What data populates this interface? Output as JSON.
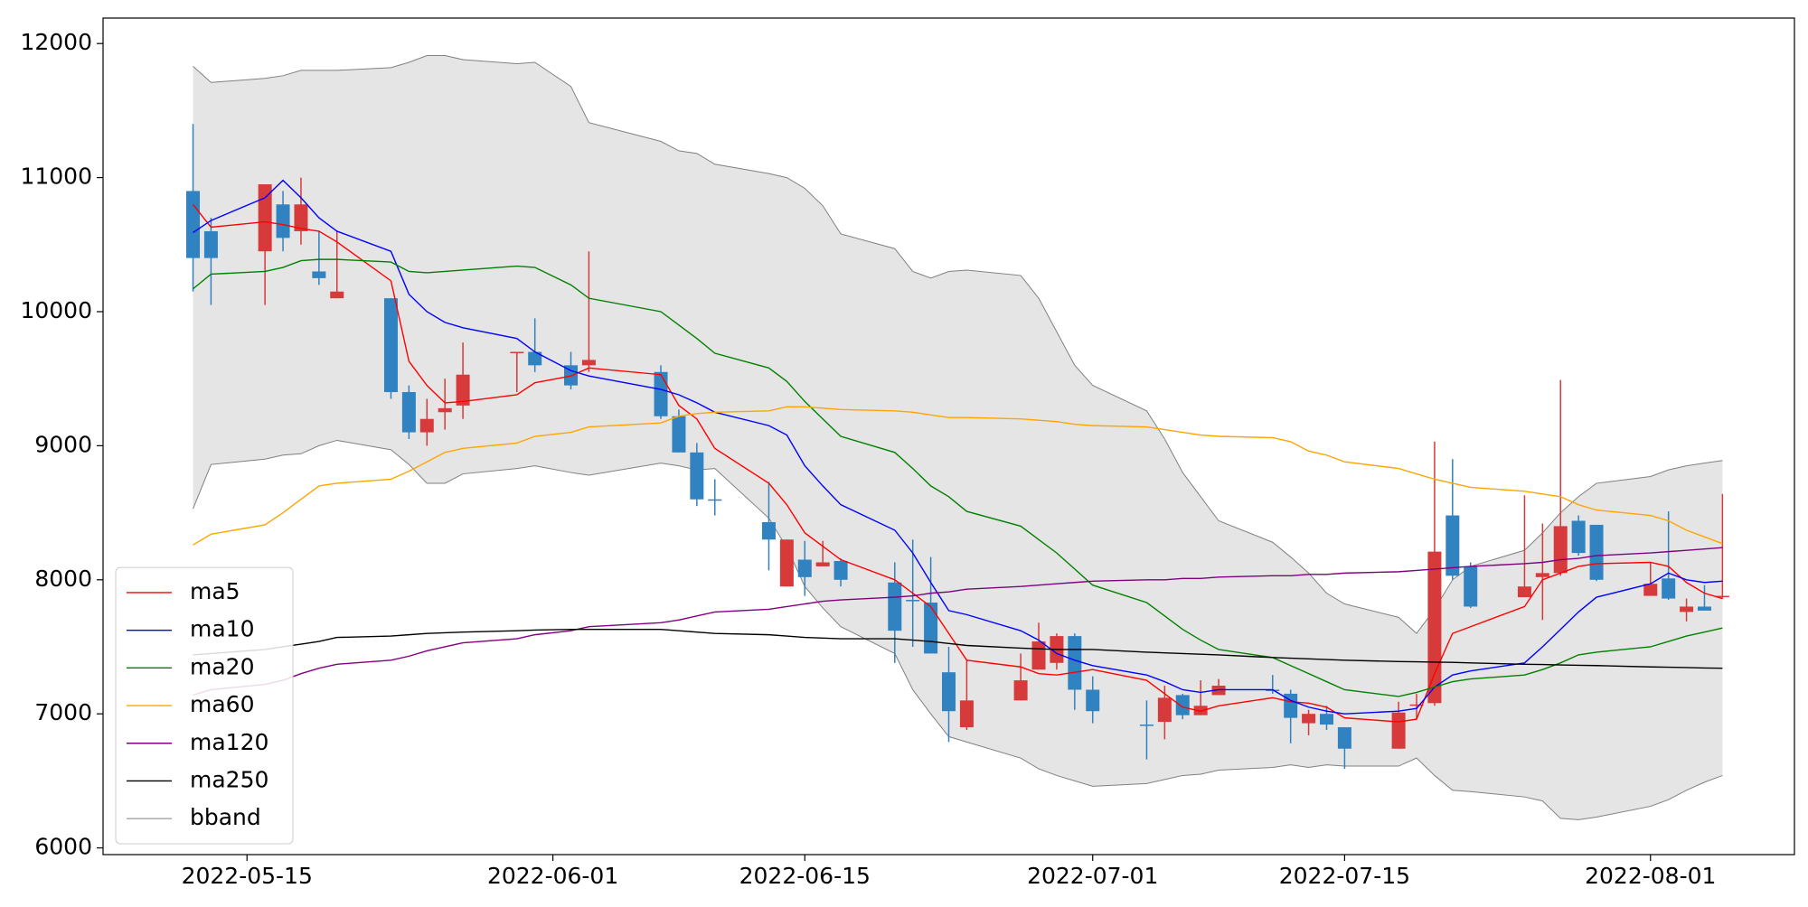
{
  "chart_data": {
    "type": "candlestick",
    "x": [
      "2022-05-12",
      "2022-05-13",
      "2022-05-16",
      "2022-05-17",
      "2022-05-18",
      "2022-05-19",
      "2022-05-20",
      "2022-05-23",
      "2022-05-24",
      "2022-05-25",
      "2022-05-26",
      "2022-05-27",
      "2022-05-30",
      "2022-05-31",
      "2022-06-02",
      "2022-06-03",
      "2022-06-07",
      "2022-06-08",
      "2022-06-09",
      "2022-06-10",
      "2022-06-13",
      "2022-06-14",
      "2022-06-15",
      "2022-06-16",
      "2022-06-17",
      "2022-06-20",
      "2022-06-21",
      "2022-06-22",
      "2022-06-23",
      "2022-06-24",
      "2022-06-27",
      "2022-06-28",
      "2022-06-29",
      "2022-06-30",
      "2022-07-01",
      "2022-07-04",
      "2022-07-05",
      "2022-07-06",
      "2022-07-07",
      "2022-07-08",
      "2022-07-11",
      "2022-07-12",
      "2022-07-13",
      "2022-07-14",
      "2022-07-15",
      "2022-07-18",
      "2022-07-19",
      "2022-07-20",
      "2022-07-21",
      "2022-07-22",
      "2022-07-25",
      "2022-07-26",
      "2022-07-27",
      "2022-07-28",
      "2022-07-29",
      "2022-08-01",
      "2022-08-02",
      "2022-08-03",
      "2022-08-04",
      "2022-08-05"
    ],
    "xlim": [
      "2022-05-07",
      "2022-08-09"
    ],
    "xticks": [
      "2022-05-15",
      "2022-06-01",
      "2022-06-15",
      "2022-07-01",
      "2022-07-15",
      "2022-08-01"
    ],
    "ylim": [
      5950,
      12190
    ],
    "yticks": [
      6000,
      7000,
      8000,
      9000,
      10000,
      11000,
      12000
    ],
    "candles": {
      "up_color": "#d73a3a",
      "down_color": "#3082c1",
      "open": [
        10900,
        10600,
        10450,
        10800,
        10600,
        10300,
        10100,
        10100,
        9400,
        9100,
        9250,
        9300,
        9690,
        9700,
        9600,
        9600,
        9550,
        9220,
        8950,
        8600,
        8430,
        7950,
        8150,
        8100,
        8140,
        7980,
        7850,
        7830,
        7310,
        6900,
        7100,
        7330,
        7380,
        7580,
        7180,
        6920,
        6940,
        7140,
        6990,
        7140,
        7180,
        7150,
        6930,
        7000,
        6900,
        6740,
        7060,
        7080,
        8480,
        8100,
        7870,
        8020,
        8050,
        8440,
        8410,
        7880,
        8010,
        7760,
        7800,
        7870
      ],
      "high": [
        11400,
        10700,
        10950,
        10900,
        11000,
        10600,
        10600,
        10100,
        9450,
        9350,
        9500,
        9770,
        9700,
        9950,
        9700,
        10450,
        9600,
        9270,
        9020,
        8750,
        8730,
        8300,
        8290,
        8290,
        8160,
        8130,
        8300,
        8170,
        7500,
        7400,
        7450,
        7680,
        7600,
        7600,
        7280,
        7100,
        7210,
        7150,
        7250,
        7260,
        7290,
        7180,
        7030,
        7060,
        6900,
        7090,
        7150,
        9030,
        8900,
        8130,
        8630,
        8420,
        9490,
        8480,
        8410,
        8130,
        8510,
        7860,
        7960,
        8640
      ],
      "low": [
        10150,
        10050,
        10050,
        10450,
        10500,
        10200,
        10100,
        9350,
        9050,
        9000,
        9120,
        9200,
        9400,
        9550,
        9420,
        9550,
        9200,
        8950,
        8550,
        8480,
        8070,
        7950,
        7880,
        8100,
        7950,
        7380,
        7500,
        7450,
        6790,
        6880,
        7100,
        7330,
        7330,
        7030,
        6930,
        6660,
        6810,
        6960,
        6990,
        7140,
        7150,
        6780,
        6840,
        6880,
        6590,
        6740,
        6960,
        7060,
        8000,
        7790,
        7870,
        7700,
        8030,
        8180,
        7990,
        7880,
        7850,
        7690,
        7770,
        7860
      ],
      "close": [
        10400,
        10400,
        10950,
        10550,
        10800,
        10250,
        10150,
        9400,
        9100,
        9200,
        9280,
        9530,
        9700,
        9600,
        9450,
        9640,
        9220,
        8950,
        8600,
        8590,
        8300,
        8300,
        8020,
        8130,
        8000,
        7620,
        7840,
        7450,
        7020,
        7100,
        7250,
        7540,
        7580,
        7180,
        7020,
        6910,
        7120,
        6990,
        7060,
        7210,
        7170,
        6970,
        7000,
        6920,
        6740,
        7010,
        7070,
        8210,
        8030,
        7800,
        7950,
        8050,
        8400,
        8200,
        8000,
        7970,
        7860,
        7800,
        7770,
        7880
      ]
    },
    "series": [
      {
        "name": "ma5",
        "color": "#ff0000",
        "values": [
          10800,
          10630,
          10670,
          10650,
          10620,
          10600,
          10520,
          10230,
          9630,
          9450,
          9320,
          9330,
          9380,
          9470,
          9520,
          9580,
          9530,
          9300,
          9200,
          8980,
          8720,
          8560,
          8350,
          8250,
          8150,
          8000,
          7900,
          7800,
          7600,
          7400,
          7350,
          7300,
          7290,
          7310,
          7330,
          7250,
          7150,
          7050,
          7020,
          7060,
          7120,
          7090,
          7080,
          7050,
          6970,
          6940,
          6960,
          7300,
          7600,
          7650,
          7800,
          8000,
          8050,
          8100,
          8120,
          8130,
          8100,
          7980,
          7900,
          7860
        ]
      },
      {
        "name": "ma10",
        "color": "#0000ff",
        "values": [
          10590,
          10680,
          10850,
          10980,
          10850,
          10700,
          10600,
          10450,
          10130,
          10000,
          9920,
          9880,
          9800,
          9700,
          9560,
          9520,
          9420,
          9380,
          9320,
          9250,
          9150,
          9080,
          8850,
          8700,
          8560,
          8370,
          8200,
          7980,
          7770,
          7740,
          7620,
          7550,
          7450,
          7400,
          7360,
          7290,
          7240,
          7180,
          7160,
          7180,
          7180,
          7100,
          7050,
          7020,
          7000,
          7020,
          7040,
          7200,
          7290,
          7320,
          7380,
          7500,
          7630,
          7760,
          7870,
          7970,
          8050,
          8000,
          7980,
          7990
        ]
      },
      {
        "name": "ma20",
        "color": "#008000",
        "values": [
          10170,
          10280,
          10300,
          10330,
          10380,
          10390,
          10390,
          10370,
          10300,
          10290,
          10300,
          10310,
          10340,
          10330,
          10200,
          10100,
          10000,
          9900,
          9800,
          9690,
          9580,
          9480,
          9330,
          9200,
          9070,
          8950,
          8830,
          8700,
          8620,
          8510,
          8400,
          8300,
          8200,
          8080,
          7960,
          7830,
          7730,
          7630,
          7550,
          7480,
          7420,
          7360,
          7300,
          7240,
          7180,
          7130,
          7160,
          7200,
          7240,
          7260,
          7290,
          7330,
          7380,
          7440,
          7460,
          7500,
          7540,
          7580,
          7610,
          7640
        ]
      },
      {
        "name": "ma60",
        "color": "#ffa500",
        "values": [
          8260,
          8340,
          8410,
          8500,
          8600,
          8700,
          8720,
          8750,
          8810,
          8880,
          8950,
          8980,
          9020,
          9070,
          9100,
          9140,
          9170,
          9220,
          9240,
          9250,
          9260,
          9290,
          9290,
          9280,
          9270,
          9260,
          9250,
          9230,
          9210,
          9210,
          9200,
          9190,
          9180,
          9160,
          9150,
          9140,
          9120,
          9100,
          9080,
          9070,
          9060,
          9030,
          8960,
          8930,
          8880,
          8830,
          8790,
          8750,
          8720,
          8690,
          8660,
          8640,
          8620,
          8560,
          8520,
          8480,
          8440,
          8370,
          8320,
          8270
        ]
      },
      {
        "name": "ma120",
        "color": "#800080",
        "values": [
          7140,
          7180,
          7220,
          7250,
          7300,
          7340,
          7370,
          7400,
          7430,
          7470,
          7500,
          7530,
          7560,
          7590,
          7620,
          7650,
          7680,
          7700,
          7730,
          7760,
          7780,
          7800,
          7820,
          7840,
          7850,
          7870,
          7880,
          7900,
          7910,
          7930,
          7950,
          7960,
          7970,
          7980,
          7990,
          8000,
          8000,
          8010,
          8010,
          8020,
          8030,
          8030,
          8040,
          8040,
          8050,
          8060,
          8070,
          8080,
          8090,
          8100,
          8120,
          8130,
          8150,
          8160,
          8180,
          8200,
          8210,
          8220,
          8230,
          8240
        ]
      },
      {
        "name": "ma250",
        "color": "#000000",
        "values": [
          7440,
          7450,
          7480,
          7500,
          7520,
          7540,
          7570,
          7580,
          7590,
          7600,
          7605,
          7610,
          7620,
          7625,
          7630,
          7630,
          7630,
          7620,
          7610,
          7600,
          7590,
          7580,
          7570,
          7565,
          7560,
          7560,
          7550,
          7540,
          7525,
          7510,
          7490,
          7485,
          7480,
          7480,
          7480,
          7460,
          7455,
          7450,
          7445,
          7440,
          7420,
          7415,
          7410,
          7405,
          7400,
          7390,
          7388,
          7386,
          7384,
          7380,
          7370,
          7368,
          7365,
          7362,
          7360,
          7350,
          7348,
          7345,
          7342,
          7340
        ]
      },
      {
        "name": "bband",
        "color": "#808080",
        "fill": "#e5e5e5",
        "upper": [
          11830,
          11710,
          11740,
          11760,
          11800,
          11800,
          11800,
          11820,
          11860,
          11910,
          11910,
          11880,
          11850,
          11860,
          11680,
          11410,
          11270,
          11200,
          11180,
          11100,
          11030,
          11000,
          10920,
          10790,
          10580,
          10470,
          10300,
          10250,
          10300,
          10310,
          10270,
          10100,
          9850,
          9600,
          9450,
          9260,
          9050,
          8800,
          8620,
          8440,
          8280,
          8170,
          8050,
          7900,
          7820,
          7720,
          7600,
          7780,
          8000,
          8100,
          8220,
          8350,
          8500,
          8620,
          8720,
          8770,
          8820,
          8850,
          8870,
          8890
        ],
        "lower": [
          8530,
          8860,
          8900,
          8930,
          8940,
          9000,
          9040,
          8970,
          8860,
          8720,
          8720,
          8790,
          8830,
          8850,
          8800,
          8780,
          8870,
          8850,
          8820,
          8830,
          8460,
          8240,
          7950,
          7790,
          7650,
          7450,
          7180,
          7000,
          6830,
          6790,
          6670,
          6590,
          6540,
          6500,
          6460,
          6480,
          6510,
          6540,
          6550,
          6580,
          6600,
          6620,
          6600,
          6620,
          6610,
          6610,
          6670,
          6540,
          6430,
          6420,
          6380,
          6350,
          6220,
          6210,
          6230,
          6310,
          6360,
          6430,
          6490,
          6540
        ]
      }
    ],
    "legend": "lower left"
  }
}
